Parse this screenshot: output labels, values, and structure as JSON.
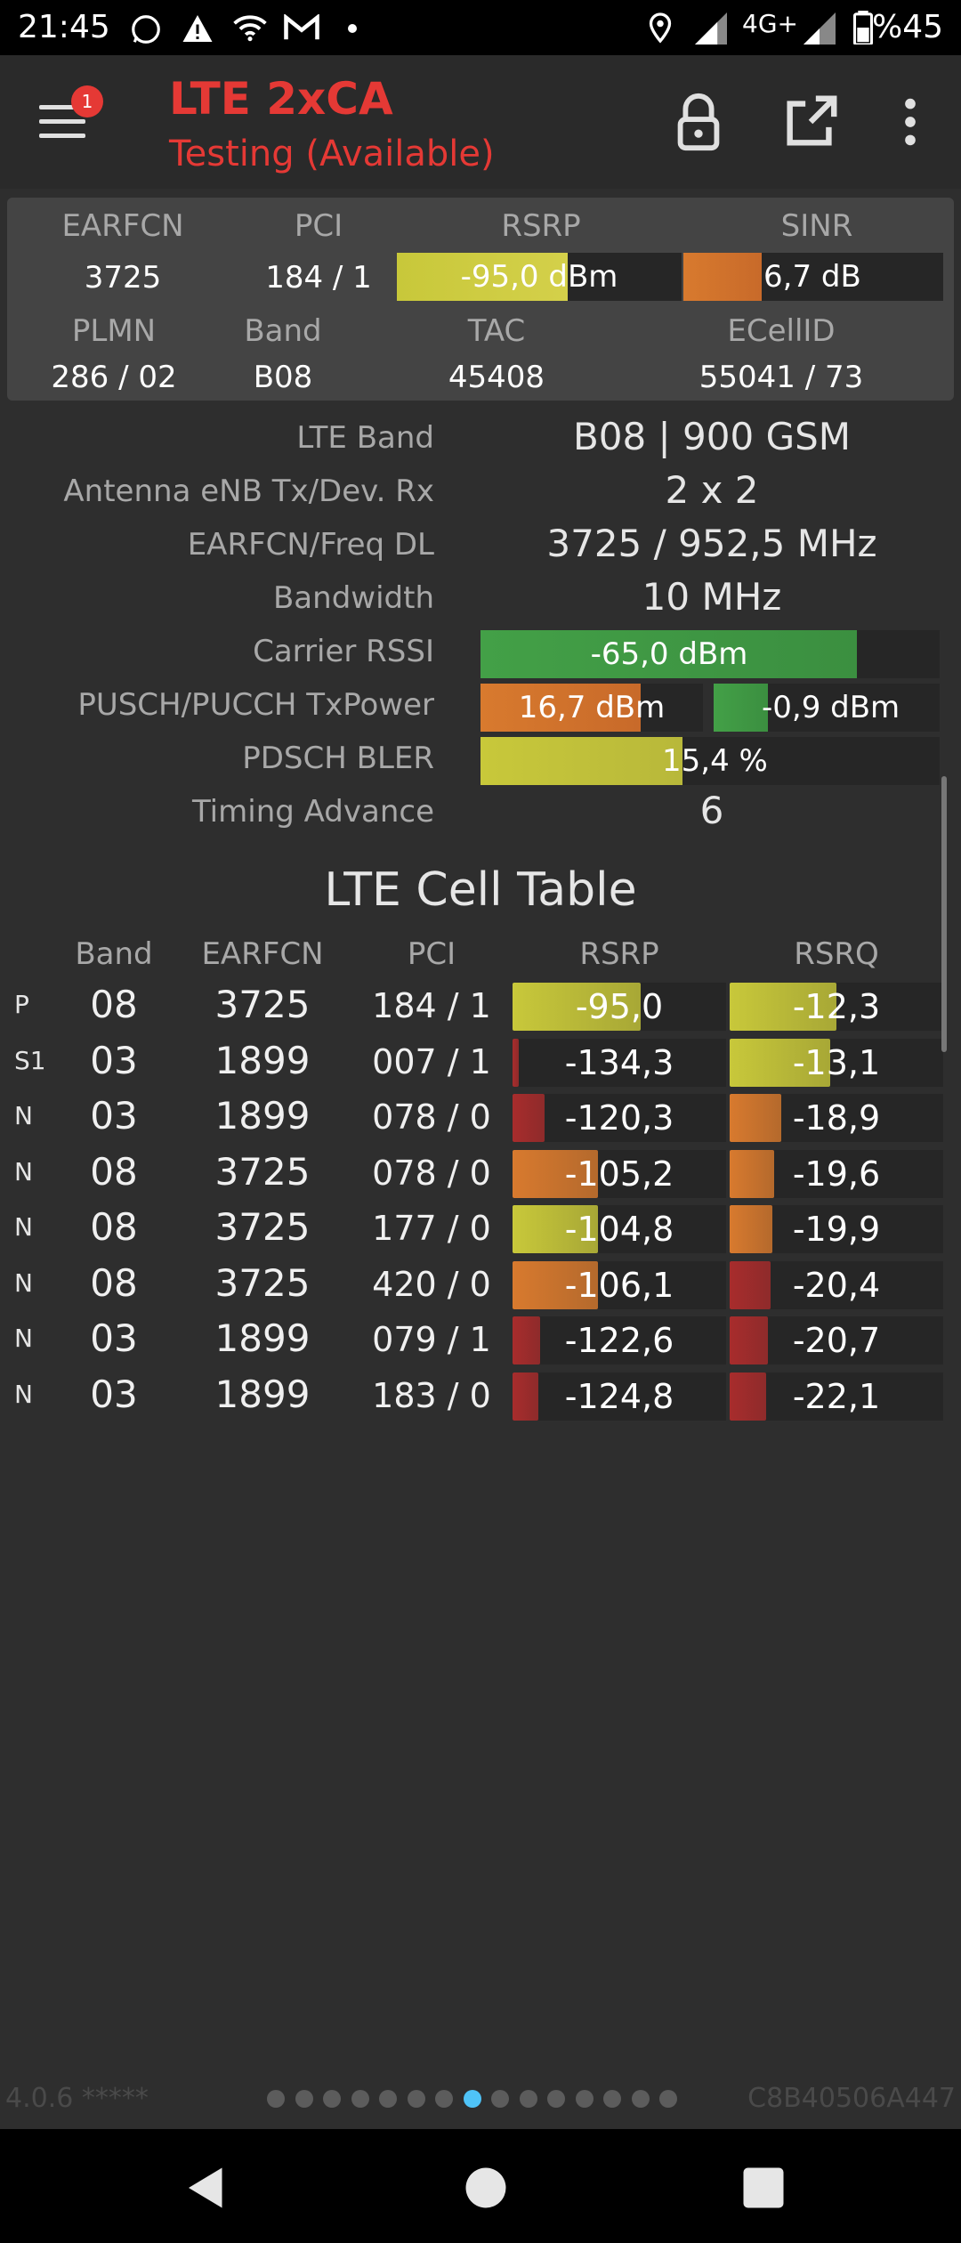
{
  "status": {
    "time": "21:45",
    "network": "4G+",
    "battery": "%45",
    "icons": [
      "whatsapp-icon",
      "warning-icon",
      "wifi-icon",
      "gmail-icon",
      "dot-icon",
      "location-icon",
      "signal-icon",
      "signal-icon",
      "battery-icon"
    ]
  },
  "appbar": {
    "badge": "1",
    "title": "LTE 2xCA",
    "subtitle": "Testing (Available)",
    "actions": [
      "lock-icon",
      "share-icon",
      "more-icon"
    ]
  },
  "panel": {
    "labels": {
      "earfcn": "EARFCN",
      "pci": "PCI",
      "rsrp": "RSRP",
      "sinr": "SINR",
      "plmn": "PLMN",
      "band": "Band",
      "tac": "TAC",
      "ecellid": "ECellID"
    },
    "values": {
      "earfcn": "3725",
      "pci": "184 / 1",
      "rsrp": "-95,0 dBm",
      "sinr": "6,7 dB",
      "plmn": "286 / 02",
      "band": "B08",
      "tac": "45408",
      "ecellid": "55041 / 73"
    },
    "rsrp_level": 0.6,
    "sinr_level": 0.3
  },
  "info": {
    "rows": [
      {
        "label": "LTE Band",
        "value": "B08 | 900 GSM"
      },
      {
        "label": "Antenna eNB Tx/Dev. Rx",
        "value": "2 x 2"
      },
      {
        "label": "EARFCN/Freq DL",
        "value": "3725 / 952,5 MHz"
      },
      {
        "label": "Bandwidth",
        "value": "10 MHz"
      },
      {
        "label": "Carrier RSSI",
        "value": "-65,0 dBm"
      },
      {
        "label": "PUSCH/PUCCH TxPower",
        "value": "16,7 dBm",
        "value2": "-0,9 dBm"
      },
      {
        "label": "PDSCH BLER",
        "value": "15,4 %"
      },
      {
        "label": "Timing Advance",
        "value": "6"
      }
    ],
    "rssi_level": 0.82,
    "pusch_level": 0.72,
    "pucch_level": 0.24,
    "bler_level": 0.44
  },
  "cell_table": {
    "title": "LTE Cell Table",
    "headers": {
      "band": "Band",
      "earfcn": "EARFCN",
      "pci": "PCI",
      "rsrp": "RSRP",
      "rsrq": "RSRQ"
    },
    "rows": [
      {
        "type": "P",
        "band": "08",
        "earfcn": "3725",
        "pci": "184 / 1",
        "rsrp": "-95,0",
        "rsrq": "-12,3",
        "rsrp_level": 0.6,
        "rsrq_level": 0.5,
        "rsrp_color": "#c8c83a",
        "rsrq_color": "#c8c83a"
      },
      {
        "type": "S1",
        "band": "03",
        "earfcn": "1899",
        "pci": "007 / 1",
        "rsrp": "-134,3",
        "rsrq": "-13,1",
        "rsrp_level": 0.03,
        "rsrq_level": 0.47,
        "rsrp_color": "#a82c2c",
        "rsrq_color": "#c8c83a"
      },
      {
        "type": "N",
        "band": "03",
        "earfcn": "1899",
        "pci": "078 / 0",
        "rsrp": "-120,3",
        "rsrq": "-18,9",
        "rsrp_level": 0.15,
        "rsrq_level": 0.24,
        "rsrp_color": "#a82c2c",
        "rsrq_color": "#d87a2e"
      },
      {
        "type": "N",
        "band": "08",
        "earfcn": "3725",
        "pci": "078 / 0",
        "rsrp": "-105,2",
        "rsrq": "-19,6",
        "rsrp_level": 0.4,
        "rsrq_level": 0.21,
        "rsrp_color": "#d87a2e",
        "rsrq_color": "#d87a2e"
      },
      {
        "type": "N",
        "band": "08",
        "earfcn": "3725",
        "pci": "177 / 0",
        "rsrp": "-104,8",
        "rsrq": "-19,9",
        "rsrp_level": 0.4,
        "rsrq_level": 0.2,
        "rsrp_color": "#c8c83a",
        "rsrq_color": "#d87a2e"
      },
      {
        "type": "N",
        "band": "08",
        "earfcn": "3725",
        "pci": "420 / 0",
        "rsrp": "-106,1",
        "rsrq": "-20,4",
        "rsrp_level": 0.4,
        "rsrq_level": 0.19,
        "rsrp_color": "#d87a2e",
        "rsrq_color": "#a82c2c"
      },
      {
        "type": "N",
        "band": "03",
        "earfcn": "1899",
        "pci": "079 / 1",
        "rsrp": "-122,6",
        "rsrq": "-20,7",
        "rsrp_level": 0.13,
        "rsrq_level": 0.18,
        "rsrp_color": "#a82c2c",
        "rsrq_color": "#a82c2c"
      },
      {
        "type": "N",
        "band": "03",
        "earfcn": "1899",
        "pci": "183 / 0",
        "rsrp": "-124,8",
        "rsrq": "-22,1",
        "rsrp_level": 0.12,
        "rsrq_level": 0.17,
        "rsrp_color": "#a82c2c",
        "rsrq_color": "#a82c2c"
      }
    ]
  },
  "footer": {
    "version": "4.0.6 *****",
    "device_id": "C8B40506A447",
    "page_count": 15,
    "active_page": 8
  },
  "colors": {
    "accent": "#e53935",
    "green": "#43a047",
    "yellow": "#c8c83a",
    "orange": "#d87a2e",
    "red": "#a82c2c",
    "active_dot": "#4fc3f7"
  },
  "navbar": [
    "back-icon",
    "home-icon",
    "recents-icon"
  ]
}
